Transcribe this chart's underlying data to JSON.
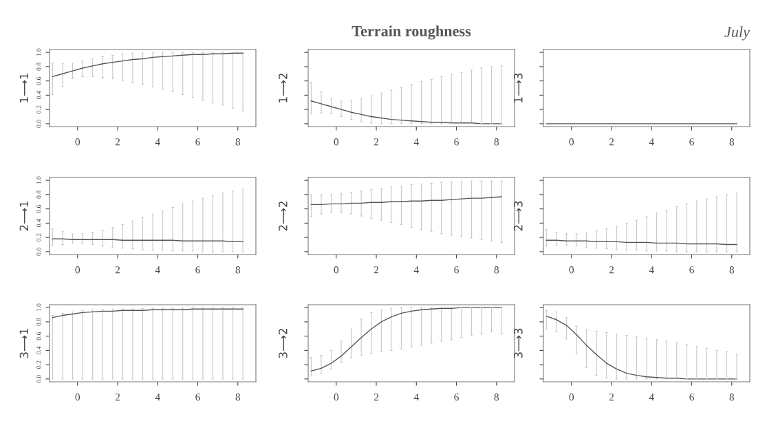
{
  "chart_data": [
    {
      "type": "line",
      "ylabel": "1⟶1",
      "x": [
        -1.25,
        -0.75,
        -0.25,
        0.25,
        0.75,
        1.25,
        1.75,
        2.25,
        2.75,
        3.25,
        3.75,
        4.25,
        4.75,
        5.25,
        5.75,
        6.25,
        6.75,
        7.25,
        7.75,
        8.25
      ],
      "color": "#555555",
      "values": [
        0.66,
        0.7,
        0.74,
        0.78,
        0.81,
        0.84,
        0.86,
        0.88,
        0.9,
        0.91,
        0.93,
        0.94,
        0.95,
        0.96,
        0.97,
        0.97,
        0.98,
        0.98,
        0.99,
        0.99
      ],
      "errors": [
        [
          0.41,
          0.85
        ],
        [
          0.52,
          0.84
        ],
        [
          0.63,
          0.85
        ],
        [
          0.66,
          0.88
        ],
        [
          0.66,
          0.91
        ],
        [
          0.65,
          0.94
        ],
        [
          0.63,
          0.96
        ],
        [
          0.61,
          0.98
        ],
        [
          0.58,
          0.99
        ],
        [
          0.55,
          0.99
        ],
        [
          0.52,
          1.0
        ],
        [
          0.48,
          1.0
        ],
        [
          0.45,
          1.0
        ],
        [
          0.41,
          1.0
        ],
        [
          0.37,
          1.0
        ],
        [
          0.33,
          1.0
        ],
        [
          0.29,
          1.0
        ],
        [
          0.26,
          1.0
        ],
        [
          0.22,
          1.0
        ],
        [
          0.18,
          1.0
        ]
      ],
      "xlim": [
        -1.4,
        8.9
      ],
      "xticks": [
        0,
        2,
        4,
        6,
        8
      ],
      "ylim": [
        -0.04,
        1.04
      ],
      "yticks": [
        {
          "value": 0,
          "label": "0.0"
        },
        {
          "value": 0.2,
          "label": "0.2"
        },
        {
          "value": 0.4,
          "label": "0.4"
        },
        {
          "value": 0.6,
          "label": "0.6"
        },
        {
          "value": 0.8,
          "label": "0.8"
        },
        {
          "value": 1,
          "label": "1.0"
        }
      ],
      "grid": false,
      "marker": "none",
      "line_style": "solid"
    },
    {
      "type": "line",
      "title": "Terrain roughness",
      "ylabel": "1⟶2",
      "x": [
        -1.25,
        -0.75,
        -0.25,
        0.25,
        0.75,
        1.25,
        1.75,
        2.25,
        2.75,
        3.25,
        3.75,
        4.25,
        4.75,
        5.25,
        5.75,
        6.25,
        6.75,
        7.25,
        7.75,
        8.25
      ],
      "color": "#555555",
      "values": [
        0.32,
        0.28,
        0.24,
        0.2,
        0.16,
        0.13,
        0.1,
        0.08,
        0.06,
        0.05,
        0.04,
        0.03,
        0.02,
        0.02,
        0.01,
        0.01,
        0.01,
        0.0,
        0.0,
        0.0
      ],
      "errors": [
        [
          0.14,
          0.58
        ],
        [
          0.15,
          0.45
        ],
        [
          0.14,
          0.35
        ],
        [
          0.1,
          0.32
        ],
        [
          0.06,
          0.33
        ],
        [
          0.03,
          0.36
        ],
        [
          0.01,
          0.39
        ],
        [
          0.0,
          0.43
        ],
        [
          0.0,
          0.47
        ],
        [
          0.0,
          0.51
        ],
        [
          0.0,
          0.55
        ],
        [
          0.0,
          0.59
        ],
        [
          0.0,
          0.62
        ],
        [
          0.0,
          0.66
        ],
        [
          0.0,
          0.69
        ],
        [
          0.0,
          0.72
        ],
        [
          0.0,
          0.75
        ],
        [
          0.0,
          0.78
        ],
        [
          0.0,
          0.8
        ],
        [
          0.0,
          0.81
        ]
      ],
      "xlim": [
        -1.4,
        8.9
      ],
      "xticks": [
        0,
        2,
        4,
        6,
        8
      ],
      "ylim": [
        -0.04,
        1.04
      ],
      "yticks": [
        {
          "value": 0,
          "label": null
        },
        {
          "value": 0.2,
          "label": null
        },
        {
          "value": 0.4,
          "label": null
        },
        {
          "value": 0.6,
          "label": null
        },
        {
          "value": 0.8,
          "label": null
        },
        {
          "value": 1,
          "label": null
        }
      ],
      "tick_labels": "x",
      "grid": false,
      "marker": "none",
      "line_style": "solid"
    },
    {
      "type": "line",
      "ylabel": "1⟶3",
      "annotations": [
        "July"
      ],
      "x": [
        -1.25,
        -0.75,
        -0.25,
        0.25,
        0.75,
        1.25,
        1.75,
        2.25,
        2.75,
        3.25,
        3.75,
        4.25,
        4.75,
        5.25,
        5.75,
        6.25,
        6.75,
        7.25,
        7.75,
        8.25
      ],
      "color": "#555555",
      "values": [
        0,
        0,
        0,
        0,
        0,
        0,
        0,
        0,
        0,
        0,
        0,
        0,
        0,
        0,
        0,
        0,
        0,
        0,
        0,
        0
      ],
      "xlim": [
        -1.4,
        8.9
      ],
      "xticks": [
        0,
        2,
        4,
        6,
        8
      ],
      "ylim": [
        -0.04,
        1.04
      ],
      "yticks": [
        {
          "value": 0,
          "label": null
        },
        {
          "value": 0.2,
          "label": null
        },
        {
          "value": 0.4,
          "label": null
        },
        {
          "value": 0.6,
          "label": null
        },
        {
          "value": 0.8,
          "label": null
        },
        {
          "value": 1,
          "label": null
        }
      ],
      "tick_labels": "x",
      "grid": false,
      "marker": "none",
      "line_style": "solid"
    },
    {
      "type": "line",
      "ylabel": "2⟶1",
      "x": [
        -1.25,
        -0.75,
        -0.25,
        0.25,
        0.75,
        1.25,
        1.75,
        2.25,
        2.75,
        3.25,
        3.75,
        4.25,
        4.75,
        5.25,
        5.75,
        6.25,
        6.75,
        7.25,
        7.75,
        8.25
      ],
      "color": "#555555",
      "values": [
        0.18,
        0.18,
        0.17,
        0.17,
        0.17,
        0.17,
        0.17,
        0.16,
        0.16,
        0.16,
        0.16,
        0.16,
        0.16,
        0.15,
        0.15,
        0.15,
        0.15,
        0.15,
        0.14,
        0.14
      ],
      "errors": [
        [
          0.09,
          0.32
        ],
        [
          0.1,
          0.28
        ],
        [
          0.12,
          0.25
        ],
        [
          0.12,
          0.25
        ],
        [
          0.1,
          0.27
        ],
        [
          0.08,
          0.3
        ],
        [
          0.06,
          0.34
        ],
        [
          0.05,
          0.38
        ],
        [
          0.04,
          0.43
        ],
        [
          0.03,
          0.48
        ],
        [
          0.02,
          0.52
        ],
        [
          0.02,
          0.57
        ],
        [
          0.01,
          0.62
        ],
        [
          0.01,
          0.67
        ],
        [
          0.01,
          0.71
        ],
        [
          0.0,
          0.75
        ],
        [
          0.0,
          0.79
        ],
        [
          0.0,
          0.82
        ],
        [
          0.0,
          0.85
        ],
        [
          0.0,
          0.88
        ]
      ],
      "xlim": [
        -1.4,
        8.9
      ],
      "xticks": [
        0,
        2,
        4,
        6,
        8
      ],
      "ylim": [
        -0.04,
        1.04
      ],
      "yticks": [
        {
          "value": 0,
          "label": "0.0"
        },
        {
          "value": 0.2,
          "label": "0.2"
        },
        {
          "value": 0.4,
          "label": "0.4"
        },
        {
          "value": 0.6,
          "label": "0.6"
        },
        {
          "value": 0.8,
          "label": "0.8"
        },
        {
          "value": 1,
          "label": "1.0"
        }
      ],
      "grid": false,
      "marker": "none",
      "line_style": "solid"
    },
    {
      "type": "line",
      "ylabel": "2⟶2",
      "x": [
        -1.25,
        -0.75,
        -0.25,
        0.25,
        0.75,
        1.25,
        1.75,
        2.25,
        2.75,
        3.25,
        3.75,
        4.25,
        4.75,
        5.25,
        5.75,
        6.25,
        6.75,
        7.25,
        7.75,
        8.25
      ],
      "color": "#555555",
      "values": [
        0.66,
        0.66,
        0.67,
        0.67,
        0.68,
        0.68,
        0.69,
        0.69,
        0.7,
        0.7,
        0.71,
        0.71,
        0.72,
        0.72,
        0.73,
        0.74,
        0.75,
        0.75,
        0.76,
        0.77
      ],
      "errors": [
        [
          0.49,
          0.8
        ],
        [
          0.53,
          0.8
        ],
        [
          0.55,
          0.8
        ],
        [
          0.55,
          0.81
        ],
        [
          0.53,
          0.83
        ],
        [
          0.5,
          0.85
        ],
        [
          0.47,
          0.87
        ],
        [
          0.44,
          0.89
        ],
        [
          0.41,
          0.91
        ],
        [
          0.38,
          0.92
        ],
        [
          0.34,
          0.94
        ],
        [
          0.31,
          0.95
        ],
        [
          0.28,
          0.96
        ],
        [
          0.25,
          0.97
        ],
        [
          0.23,
          0.98
        ],
        [
          0.21,
          0.98
        ],
        [
          0.19,
          0.99
        ],
        [
          0.17,
          0.99
        ],
        [
          0.15,
          0.99
        ],
        [
          0.13,
          0.99
        ]
      ],
      "xlim": [
        -1.4,
        8.9
      ],
      "xticks": [
        0,
        2,
        4,
        6,
        8
      ],
      "ylim": [
        -0.04,
        1.04
      ],
      "yticks": [
        {
          "value": 0,
          "label": null
        },
        {
          "value": 0.2,
          "label": null
        },
        {
          "value": 0.4,
          "label": null
        },
        {
          "value": 0.6,
          "label": null
        },
        {
          "value": 0.8,
          "label": null
        },
        {
          "value": 1,
          "label": null
        }
      ],
      "tick_labels": "x",
      "grid": false,
      "marker": "none",
      "line_style": "solid"
    },
    {
      "type": "line",
      "ylabel": "2⟶3",
      "x": [
        -1.25,
        -0.75,
        -0.25,
        0.25,
        0.75,
        1.25,
        1.75,
        2.25,
        2.75,
        3.25,
        3.75,
        4.25,
        4.75,
        5.25,
        5.75,
        6.25,
        6.75,
        7.25,
        7.75,
        8.25
      ],
      "color": "#555555",
      "values": [
        0.16,
        0.16,
        0.15,
        0.15,
        0.15,
        0.14,
        0.14,
        0.14,
        0.13,
        0.13,
        0.13,
        0.12,
        0.12,
        0.12,
        0.11,
        0.11,
        0.11,
        0.11,
        0.1,
        0.1
      ],
      "errors": [
        [
          0.08,
          0.31
        ],
        [
          0.09,
          0.27
        ],
        [
          0.09,
          0.25
        ],
        [
          0.08,
          0.25
        ],
        [
          0.06,
          0.26
        ],
        [
          0.05,
          0.29
        ],
        [
          0.04,
          0.32
        ],
        [
          0.03,
          0.36
        ],
        [
          0.02,
          0.4
        ],
        [
          0.02,
          0.44
        ],
        [
          0.01,
          0.49
        ],
        [
          0.01,
          0.54
        ],
        [
          0.01,
          0.58
        ],
        [
          0.0,
          0.63
        ],
        [
          0.0,
          0.67
        ],
        [
          0.0,
          0.71
        ],
        [
          0.0,
          0.74
        ],
        [
          0.0,
          0.77
        ],
        [
          0.0,
          0.8
        ],
        [
          0.0,
          0.82
        ]
      ],
      "xlim": [
        -1.4,
        8.9
      ],
      "xticks": [
        0,
        2,
        4,
        6,
        8
      ],
      "ylim": [
        -0.04,
        1.04
      ],
      "yticks": [
        {
          "value": 0,
          "label": null
        },
        {
          "value": 0.2,
          "label": null
        },
        {
          "value": 0.4,
          "label": null
        },
        {
          "value": 0.6,
          "label": null
        },
        {
          "value": 0.8,
          "label": null
        },
        {
          "value": 1,
          "label": null
        }
      ],
      "tick_labels": "x",
      "grid": false,
      "marker": "none",
      "line_style": "solid"
    },
    {
      "type": "line",
      "ylabel": "3⟶1",
      "x": [
        -1.25,
        -0.75,
        -0.25,
        0.25,
        0.75,
        1.25,
        1.75,
        2.25,
        2.75,
        3.25,
        3.75,
        4.25,
        4.75,
        5.25,
        5.75,
        6.25,
        6.75,
        7.25,
        7.75,
        8.25
      ],
      "color": "#555555",
      "values": [
        0.86,
        0.89,
        0.91,
        0.93,
        0.94,
        0.95,
        0.95,
        0.96,
        0.96,
        0.96,
        0.97,
        0.97,
        0.97,
        0.97,
        0.98,
        0.98,
        0.98,
        0.98,
        0.98,
        0.98
      ],
      "errors": [
        [
          0.0,
          0.89
        ],
        [
          0.0,
          0.92
        ],
        [
          0.0,
          0.94
        ],
        [
          0.0,
          0.96
        ],
        [
          0.0,
          0.97
        ],
        [
          0.0,
          0.97
        ],
        [
          0.0,
          0.98
        ],
        [
          0.0,
          0.98
        ],
        [
          0.0,
          0.98
        ],
        [
          0.0,
          0.99
        ],
        [
          0.0,
          0.99
        ],
        [
          0.0,
          0.99
        ],
        [
          0.0,
          0.99
        ],
        [
          0.0,
          0.99
        ],
        [
          0.0,
          1.0
        ],
        [
          0.0,
          1.0
        ],
        [
          0.0,
          1.0
        ],
        [
          0.0,
          1.0
        ],
        [
          0.0,
          1.0
        ],
        [
          0.0,
          1.0
        ]
      ],
      "xlim": [
        -1.4,
        8.9
      ],
      "xticks": [
        0,
        2,
        4,
        6,
        8
      ],
      "ylim": [
        -0.04,
        1.04
      ],
      "yticks": [
        {
          "value": 0,
          "label": "0.0"
        },
        {
          "value": 0.2,
          "label": "0.2"
        },
        {
          "value": 0.4,
          "label": "0.4"
        },
        {
          "value": 0.6,
          "label": "0.6"
        },
        {
          "value": 0.8,
          "label": "0.8"
        },
        {
          "value": 1,
          "label": "1.0"
        }
      ],
      "grid": false,
      "marker": "none",
      "line_style": "solid"
    },
    {
      "type": "line",
      "ylabel": "3⟶2",
      "x": [
        -1.25,
        -0.75,
        -0.25,
        0.25,
        0.75,
        1.25,
        1.75,
        2.25,
        2.75,
        3.25,
        3.75,
        4.25,
        4.75,
        5.25,
        5.75,
        6.25,
        6.75,
        7.25,
        7.75,
        8.25
      ],
      "color": "#555555",
      "values": [
        0.11,
        0.15,
        0.22,
        0.32,
        0.45,
        0.58,
        0.7,
        0.8,
        0.87,
        0.92,
        0.95,
        0.97,
        0.98,
        0.99,
        0.99,
        1.0,
        1.0,
        1.0,
        1.0,
        1.0
      ],
      "errors": [
        [
          0.04,
          0.3
        ],
        [
          0.08,
          0.33
        ],
        [
          0.14,
          0.4
        ],
        [
          0.23,
          0.53
        ],
        [
          0.3,
          0.7
        ],
        [
          0.33,
          0.84
        ],
        [
          0.36,
          0.93
        ],
        [
          0.38,
          0.97
        ],
        [
          0.4,
          0.99
        ],
        [
          0.42,
          1.0
        ],
        [
          0.45,
          1.0
        ],
        [
          0.47,
          1.0
        ],
        [
          0.5,
          1.0
        ],
        [
          0.53,
          1.0
        ],
        [
          0.55,
          1.0
        ],
        [
          0.58,
          1.0
        ],
        [
          0.61,
          1.0
        ],
        [
          0.64,
          1.0
        ],
        [
          0.66,
          1.0
        ],
        [
          0.63,
          1.0
        ]
      ],
      "xlim": [
        -1.4,
        8.9
      ],
      "xticks": [
        0,
        2,
        4,
        6,
        8
      ],
      "ylim": [
        -0.04,
        1.04
      ],
      "yticks": [
        {
          "value": 0,
          "label": null
        },
        {
          "value": 0.2,
          "label": null
        },
        {
          "value": 0.4,
          "label": null
        },
        {
          "value": 0.6,
          "label": null
        },
        {
          "value": 0.8,
          "label": null
        },
        {
          "value": 1,
          "label": null
        }
      ],
      "tick_labels": "x",
      "grid": false,
      "marker": "none",
      "line_style": "solid"
    },
    {
      "type": "line",
      "ylabel": "3⟶3",
      "x": [
        -1.25,
        -0.75,
        -0.25,
        0.25,
        0.75,
        1.25,
        1.75,
        2.25,
        2.75,
        3.25,
        3.75,
        4.25,
        4.75,
        5.25,
        5.75,
        6.25,
        6.75,
        7.25,
        7.75,
        8.25
      ],
      "color": "#555555",
      "values": [
        0.88,
        0.83,
        0.75,
        0.62,
        0.47,
        0.34,
        0.22,
        0.14,
        0.08,
        0.05,
        0.03,
        0.02,
        0.01,
        0.01,
        0.0,
        0.0,
        0.0,
        0.0,
        0.0,
        0.0
      ],
      "errors": [
        [
          0.7,
          0.96
        ],
        [
          0.66,
          0.94
        ],
        [
          0.56,
          0.86
        ],
        [
          0.35,
          0.74
        ],
        [
          0.16,
          0.69
        ],
        [
          0.05,
          0.67
        ],
        [
          0.01,
          0.65
        ],
        [
          0.0,
          0.63
        ],
        [
          0.0,
          0.61
        ],
        [
          0.0,
          0.59
        ],
        [
          0.0,
          0.57
        ],
        [
          0.0,
          0.55
        ],
        [
          0.0,
          0.53
        ],
        [
          0.0,
          0.51
        ],
        [
          0.0,
          0.48
        ],
        [
          0.0,
          0.46
        ],
        [
          0.0,
          0.43
        ],
        [
          0.0,
          0.4
        ],
        [
          0.0,
          0.38
        ],
        [
          0.0,
          0.35
        ]
      ],
      "xlim": [
        -1.4,
        8.9
      ],
      "xticks": [
        0,
        2,
        4,
        6,
        8
      ],
      "ylim": [
        -0.04,
        1.04
      ],
      "yticks": [
        {
          "value": 0,
          "label": null
        },
        {
          "value": 0.2,
          "label": null
        },
        {
          "value": 0.4,
          "label": null
        },
        {
          "value": 0.6,
          "label": null
        },
        {
          "value": 0.8,
          "label": null
        },
        {
          "value": 1,
          "label": null
        }
      ],
      "tick_labels": "x",
      "grid": false,
      "marker": "none",
      "line_style": "solid"
    }
  ]
}
